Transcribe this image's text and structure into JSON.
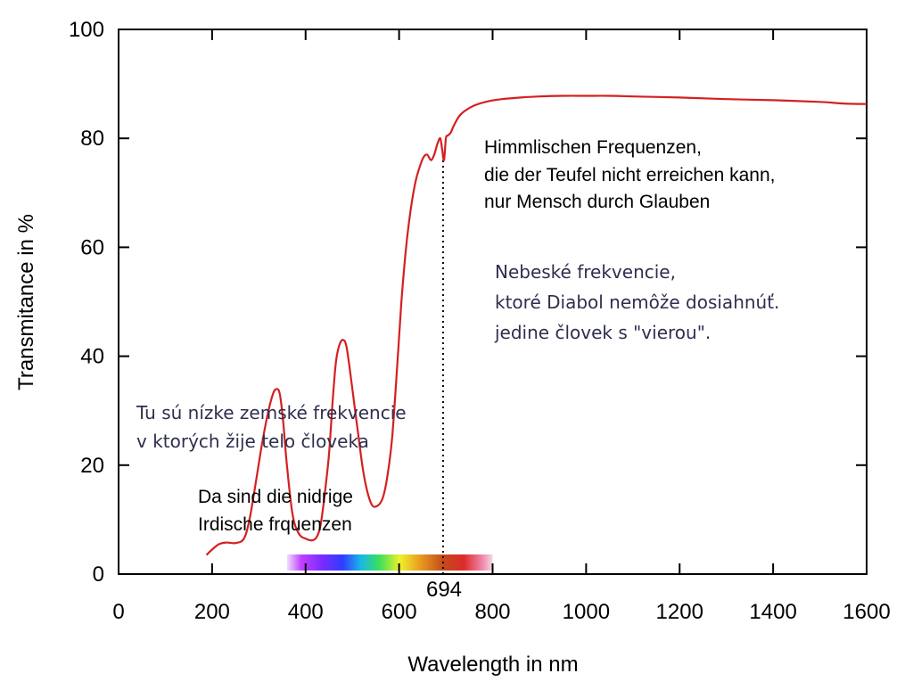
{
  "chart_data": {
    "type": "line",
    "xlabel": "Wavelength in nm",
    "ylabel": "Transmitance in %",
    "xlim": [
      0,
      1600
    ],
    "ylim": [
      0,
      100
    ],
    "x_ticks": [
      0,
      200,
      400,
      600,
      800,
      1000,
      1200,
      1400,
      1600
    ],
    "y_ticks": [
      0,
      20,
      40,
      60,
      80,
      100
    ],
    "grid": false,
    "series": [
      {
        "color": "#d42020",
        "x": [
          188,
          200,
          215,
          230,
          250,
          268,
          280,
          292,
          305,
          318,
          330,
          338,
          345,
          352,
          360,
          372,
          385,
          400,
          415,
          425,
          432,
          440,
          450,
          458,
          465,
          472,
          480,
          488,
          500,
          512,
          525,
          540,
          553,
          565,
          575,
          585,
          595,
          605,
          615,
          625,
          635,
          645,
          652,
          660,
          668,
          675,
          682,
          688,
          692,
          696,
          700,
          704,
          710,
          718,
          728,
          740,
          760,
          790,
          820,
          860,
          900,
          950,
          1000,
          1050,
          1100,
          1200,
          1300,
          1400,
          1500,
          1550,
          1600
        ],
        "y": [
          3.5,
          4.5,
          5.5,
          5.8,
          5.7,
          6.5,
          10,
          16,
          23,
          29,
          33,
          34,
          33,
          28,
          20,
          11,
          7.5,
          6.5,
          6.2,
          7,
          9,
          14,
          22,
          32,
          39,
          42,
          43,
          41.5,
          34,
          26,
          18,
          13,
          12.5,
          14,
          18,
          25,
          37,
          50,
          60,
          67,
          72,
          75,
          76.5,
          77,
          76,
          77,
          79,
          80,
          78,
          76,
          80,
          80.5,
          81,
          82.5,
          84,
          85,
          86,
          86.8,
          87.2,
          87.5,
          87.7,
          87.8,
          87.8,
          87.8,
          87.7,
          87.5,
          87.2,
          87,
          86.7,
          86.4,
          86.3
        ]
      }
    ],
    "annotations": [
      {
        "text": "694"
      },
      {
        "text": "Himmlischen Frequenzen,"
      },
      {
        "text": "die der Teufel nicht erreichen kann,"
      },
      {
        "text": "nur Mensch durch Glauben"
      },
      {
        "text": "Nebeské frekvencie,"
      },
      {
        "text": "ktoré Diabol nemôže dosiahnúť."
      },
      {
        "text": "jedine človek s \"vierou\"."
      },
      {
        "text": "Tu sú nízke zemské frekvencie"
      },
      {
        "text": "v ktorých žije telo človeka"
      },
      {
        "text": "Da sind die nidrige"
      },
      {
        "text": "Irdische frquenzen"
      }
    ],
    "marker_line_x": 694,
    "visible_spectrum": {
      "from": 360,
      "to": 800
    }
  }
}
